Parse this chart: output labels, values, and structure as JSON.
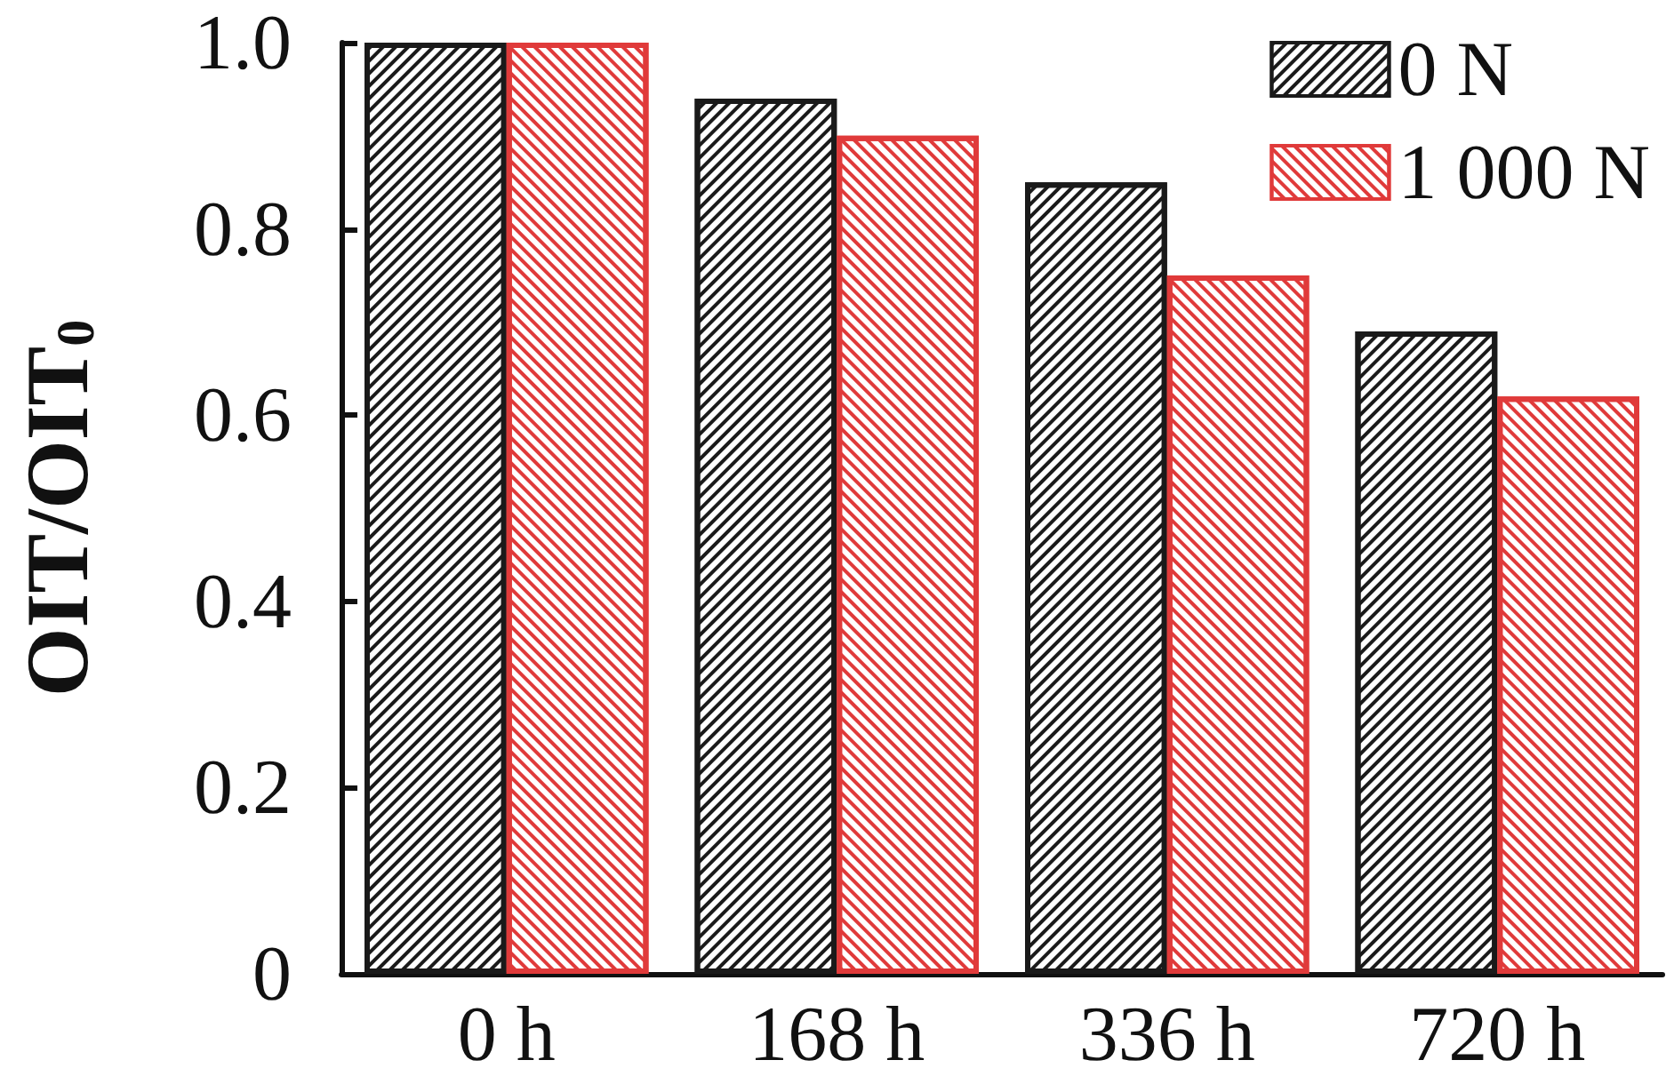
{
  "chart_data": {
    "type": "bar",
    "ylabel": "OIT/OIT$_{0}$",
    "categories": [
      "0 h",
      "168 h",
      "336 h",
      "720 h"
    ],
    "series": [
      {
        "name": "0 N",
        "color": "#1a1a1a",
        "values": [
          1.0,
          0.94,
          0.85,
          0.69
        ]
      },
      {
        "name": "1 000 N",
        "color": "#e03a3a",
        "values": [
          1.0,
          0.9,
          0.75,
          0.62
        ]
      }
    ],
    "ylim": [
      0,
      1.0
    ],
    "yticks": [
      0,
      0.2,
      0.4,
      0.6,
      0.8,
      {
        "value": 1,
        "label": "1.0"
      }
    ],
    "grid": false,
    "legend": "top right"
  }
}
